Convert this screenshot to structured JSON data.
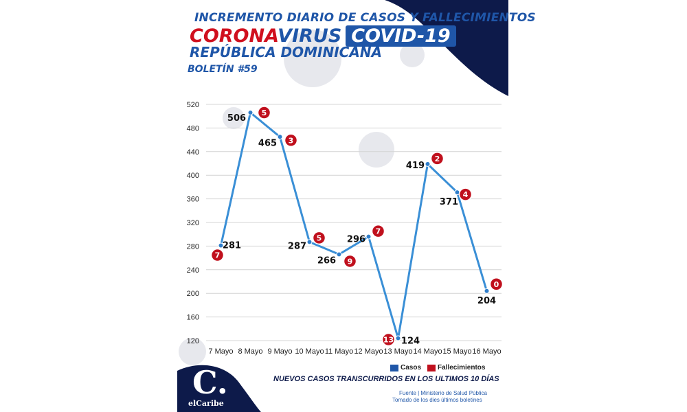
{
  "header": {
    "title_line1": "INCREMENTO DIARIO DE CASOS Y FALLECIMIENTOS",
    "title_corona": "CORONA",
    "title_virus": "VIRUS",
    "title_covid": "COVID-19",
    "title_line3": "REPÚBLICA DOMINICANA",
    "bulletin": "BOLETÍN #59"
  },
  "footer": {
    "subtitle": "NUEVOS CASOS TRANSCURRIDOS EN LOS ULTIMOS 10 DÍAS",
    "source_line1": "Fuente | Ministerio de Salud Pública",
    "source_line2": "Tomado de  los dies últimos boletines",
    "logo_letter": "C.",
    "logo_text": "elCaribe"
  },
  "legend": {
    "cases": "Casos",
    "deaths": "Fallecimientos"
  },
  "colors": {
    "line": "#3a8fd6",
    "point": "#2f7ecb",
    "death_badge": "#c0101d",
    "brand_blue": "#1f56a8",
    "navy": "#0d1a4a"
  },
  "chart_data": {
    "type": "line",
    "categories": [
      "7 Mayo",
      "8 Mayo",
      "9 Mayo",
      "10 Mayo",
      "11 Mayo",
      "12 Mayo",
      "13 Mayo",
      "14 Mayo",
      "15 Mayo",
      "16 Mayo"
    ],
    "series": [
      {
        "name": "Casos",
        "values": [
          281,
          506,
          465,
          287,
          266,
          296,
          124,
          419,
          371,
          204
        ]
      },
      {
        "name": "Fallecimientos",
        "values": [
          7,
          5,
          3,
          5,
          9,
          7,
          13,
          2,
          4,
          0
        ]
      }
    ],
    "yticks": [
      120,
      160,
      200,
      240,
      280,
      320,
      360,
      400,
      440,
      480,
      520
    ],
    "ylim": [
      120,
      520
    ],
    "grid": true,
    "legend_position": "bottom-right"
  }
}
